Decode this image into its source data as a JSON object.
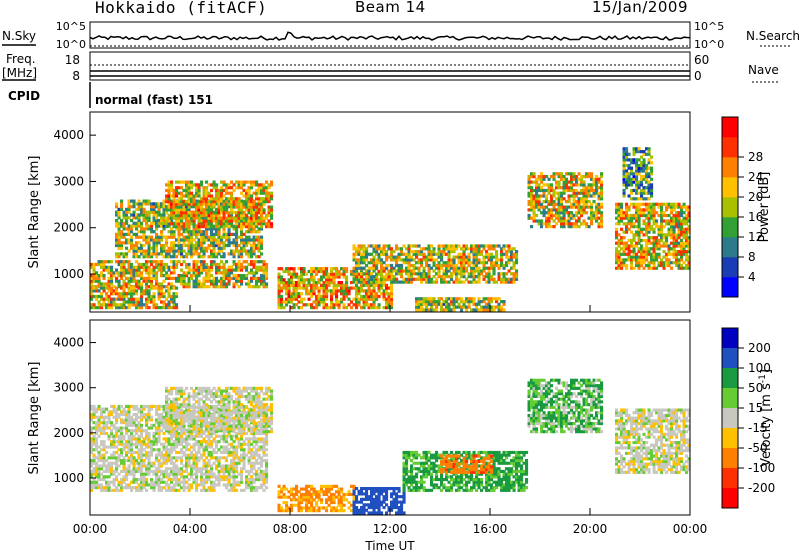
{
  "header": {
    "station": "Hokkaido (fitACF)",
    "beam": "Beam 14",
    "date": "15/Jan/2009"
  },
  "info_panels": {
    "nsky_label": "N.Sky",
    "nsearch_label": "N.Search",
    "noise_ticks": [
      "10^5",
      "10^0"
    ],
    "freq_label_line1": "Freq.",
    "freq_label_line2": "[MHz]",
    "freq_ticks": [
      "18",
      "8"
    ],
    "nave_label": "Nave",
    "nave_ticks": [
      "60",
      "0"
    ],
    "cpid_label": "CPID",
    "cpid_value": "normal (fast) 151"
  },
  "chart_data": [
    {
      "type": "heatmap",
      "panel": "power",
      "xlabel": "Time UT",
      "ylabel": "Slant Range [km]",
      "x_ticks": [
        "00:00",
        "04:00",
        "08:00",
        "12:00",
        "16:00",
        "20:00",
        "00:00"
      ],
      "x_range_hours": [
        0,
        24
      ],
      "y_ticks": [
        1000,
        2000,
        3000,
        4000
      ],
      "ylim": [
        180,
        4500
      ],
      "colorbar": {
        "label": "Power [dB]",
        "ticks": [
          4,
          8,
          12,
          16,
          20,
          24,
          28
        ],
        "range": [
          0,
          32
        ],
        "colors": [
          "#0000ff",
          "#1a3cb4",
          "#2c7a8a",
          "#33a033",
          "#a8c000",
          "#ffc000",
          "#ff8000",
          "#ff3000",
          "#ff0000"
        ]
      },
      "regions": [
        {
          "t0": 0.0,
          "t1": 7.0,
          "r0": 700,
          "r1": 1300,
          "level": 18
        },
        {
          "t0": 1.0,
          "t1": 6.8,
          "r0": 1350,
          "r1": 2600,
          "level": 16
        },
        {
          "t0": 3.0,
          "t1": 7.2,
          "r0": 2000,
          "r1": 3000,
          "level": 20
        },
        {
          "t0": 0.0,
          "t1": 3.5,
          "r0": 250,
          "r1": 700,
          "level": 18
        },
        {
          "t0": 7.5,
          "t1": 12.0,
          "r0": 250,
          "r1": 1100,
          "level": 20
        },
        {
          "t0": 10.5,
          "t1": 17.0,
          "r0": 800,
          "r1": 1600,
          "level": 17
        },
        {
          "t0": 13.0,
          "t1": 16.5,
          "r0": 200,
          "r1": 500,
          "level": 16
        },
        {
          "t0": 17.5,
          "t1": 20.5,
          "r0": 2000,
          "r1": 3200,
          "level": 18
        },
        {
          "t0": 21.0,
          "t1": 24.0,
          "r0": 1100,
          "r1": 2500,
          "level": 19
        },
        {
          "t0": 21.3,
          "t1": 22.5,
          "r0": 2600,
          "r1": 3700,
          "level": 12
        }
      ]
    },
    {
      "type": "heatmap",
      "panel": "velocity",
      "xlabel": "Time UT",
      "ylabel": "Slant Range [km]",
      "x_ticks": [
        "00:00",
        "04:00",
        "08:00",
        "12:00",
        "16:00",
        "20:00",
        "00:00"
      ],
      "x_range_hours": [
        0,
        24
      ],
      "y_ticks": [
        1000,
        2000,
        3000,
        4000
      ],
      "ylim": [
        180,
        4500
      ],
      "colorbar": {
        "label": "Velocity [m s^-1]",
        "ticks": [
          200,
          100,
          50,
          15,
          -15,
          -50,
          -100,
          -200
        ],
        "colors": [
          "#0000c0",
          "#2050c0",
          "#1a9a40",
          "#66cc33",
          "#c8c8c0",
          "#ffc000",
          "#ff8000",
          "#ff3000",
          "#ff0000"
        ]
      },
      "regions": [
        {
          "t0": 0.0,
          "t1": 7.0,
          "r0": 700,
          "r1": 2600,
          "vel": 0
        },
        {
          "t0": 3.0,
          "t1": 7.2,
          "r0": 2000,
          "r1": 3000,
          "vel": 0
        },
        {
          "t0": 7.5,
          "t1": 10.5,
          "r0": 250,
          "r1": 800,
          "vel": -40
        },
        {
          "t0": 10.5,
          "t1": 12.5,
          "r0": 200,
          "r1": 800,
          "vel": 120
        },
        {
          "t0": 12.5,
          "t1": 17.5,
          "r0": 700,
          "r1": 1600,
          "vel": 40
        },
        {
          "t0": 14.0,
          "t1": 16.0,
          "r0": 1100,
          "r1": 1500,
          "vel": -60
        },
        {
          "t0": 17.5,
          "t1": 20.5,
          "r0": 2000,
          "r1": 3200,
          "vel": 30
        },
        {
          "t0": 21.0,
          "t1": 24.0,
          "r0": 1100,
          "r1": 2500,
          "vel": 0
        }
      ]
    }
  ]
}
